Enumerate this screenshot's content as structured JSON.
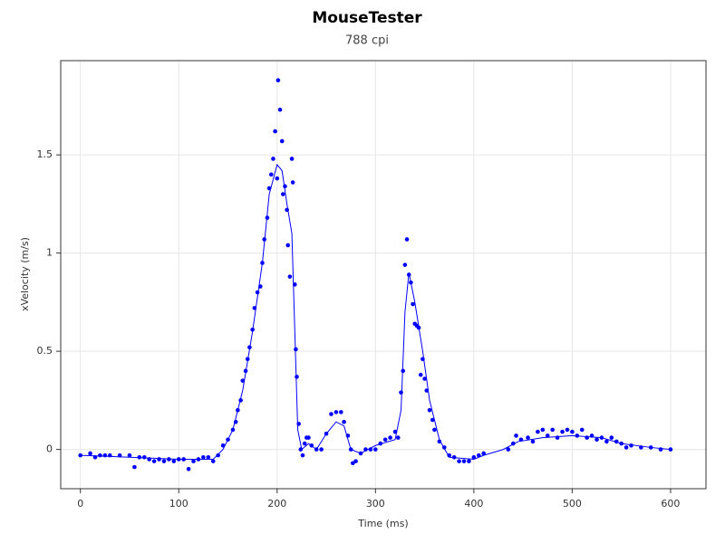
{
  "chart_data": {
    "type": "scatter",
    "title": "MouseTester",
    "subtitle": "788 cpi",
    "x_label": "Time (ms)",
    "y_label": "xVelocity (m/s)",
    "xlim": [
      -20,
      636
    ],
    "ylim": [
      -0.2,
      1.98
    ],
    "xticks": [
      0,
      100,
      200,
      300,
      400,
      500,
      600
    ],
    "yticks": [
      0,
      0.5,
      1,
      1.5
    ],
    "grid": true,
    "series": [
      {
        "type": "scatter",
        "color": "#0000ff",
        "x": [
          0,
          10,
          15,
          20,
          25,
          30,
          40,
          50,
          55,
          60,
          65,
          70,
          75,
          80,
          85,
          90,
          95,
          100,
          105,
          110,
          115,
          120,
          125,
          130,
          135,
          140,
          145,
          150,
          155,
          158,
          160,
          163,
          165,
          168,
          170,
          172,
          175,
          177,
          180,
          183,
          185,
          187,
          190,
          192,
          194,
          196,
          198,
          200,
          201,
          203,
          205,
          206,
          208,
          210,
          211,
          213,
          215,
          216,
          218,
          219,
          220,
          222,
          224,
          226,
          228,
          230,
          232,
          235,
          240,
          245,
          250,
          255,
          260,
          265,
          268,
          272,
          275,
          277,
          280,
          285,
          290,
          295,
          300,
          305,
          310,
          315,
          320,
          323,
          326,
          328,
          330,
          332,
          334,
          336,
          338,
          340,
          342,
          344,
          346,
          348,
          350,
          352,
          355,
          358,
          360,
          365,
          370,
          375,
          380,
          385,
          390,
          395,
          400,
          405,
          410,
          435,
          440,
          443,
          448,
          455,
          460,
          465,
          470,
          475,
          480,
          485,
          490,
          495,
          500,
          505,
          510,
          515,
          520,
          525,
          530,
          535,
          540,
          545,
          550,
          555,
          560,
          570,
          580,
          590,
          600
        ],
        "values": [
          -0.03,
          -0.02,
          -0.04,
          -0.03,
          -0.03,
          -0.03,
          -0.03,
          -0.03,
          -0.09,
          -0.04,
          -0.04,
          -0.05,
          -0.06,
          -0.05,
          -0.06,
          -0.05,
          -0.06,
          -0.05,
          -0.05,
          -0.1,
          -0.06,
          -0.05,
          -0.04,
          -0.04,
          -0.06,
          -0.03,
          0.02,
          0.05,
          0.1,
          0.14,
          0.2,
          0.25,
          0.35,
          0.4,
          0.46,
          0.52,
          0.61,
          0.72,
          0.8,
          0.83,
          0.95,
          1.07,
          1.18,
          1.33,
          1.4,
          1.48,
          1.62,
          1.38,
          1.88,
          1.73,
          1.57,
          1.3,
          1.34,
          1.22,
          1.04,
          0.88,
          1.48,
          1.36,
          0.84,
          0.51,
          0.37,
          0.13,
          0.0,
          -0.03,
          0.03,
          0.06,
          0.06,
          0.02,
          0.0,
          0.0,
          0.08,
          0.18,
          0.19,
          0.19,
          0.14,
          0.07,
          0.0,
          -0.07,
          -0.06,
          -0.02,
          0.0,
          0.0,
          0.0,
          0.03,
          0.05,
          0.06,
          0.09,
          0.06,
          0.29,
          0.4,
          0.94,
          1.07,
          0.89,
          0.85,
          0.74,
          0.64,
          0.63,
          0.62,
          0.38,
          0.46,
          0.36,
          0.3,
          0.2,
          0.15,
          0.1,
          0.04,
          0.01,
          -0.03,
          -0.04,
          -0.06,
          -0.06,
          -0.06,
          -0.04,
          -0.03,
          -0.02,
          0.0,
          0.03,
          0.07,
          0.05,
          0.06,
          0.04,
          0.09,
          0.1,
          0.07,
          0.1,
          0.06,
          0.09,
          0.1,
          0.09,
          0.07,
          0.1,
          0.06,
          0.07,
          0.05,
          0.06,
          0.04,
          0.06,
          0.04,
          0.03,
          0.01,
          0.02,
          0.01,
          0.01,
          0.0,
          0.0
        ]
      },
      {
        "type": "line",
        "color": "#0000ff",
        "x": [
          0,
          50,
          100,
          135,
          145,
          155,
          165,
          175,
          185,
          192,
          200,
          205,
          210,
          215,
          218,
          221,
          225,
          232,
          240,
          250,
          260,
          268,
          275,
          285,
          300,
          320,
          326,
          330,
          334,
          340,
          348,
          355,
          365,
          375,
          400,
          410,
          430,
          445,
          470,
          500,
          530,
          550,
          580,
          600
        ],
        "values": [
          -0.03,
          -0.04,
          -0.05,
          -0.05,
          0.0,
          0.1,
          0.3,
          0.6,
          0.95,
          1.3,
          1.45,
          1.42,
          1.25,
          1.1,
          0.6,
          0.1,
          0.0,
          0.03,
          0.0,
          0.08,
          0.14,
          0.12,
          0.0,
          -0.02,
          0.02,
          0.05,
          0.2,
          0.7,
          0.9,
          0.75,
          0.5,
          0.25,
          0.05,
          -0.04,
          -0.05,
          -0.03,
          0.0,
          0.04,
          0.06,
          0.07,
          0.06,
          0.03,
          0.01,
          0.0
        ]
      }
    ]
  }
}
